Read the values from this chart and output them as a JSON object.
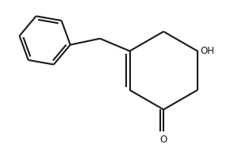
{
  "background_color": "#ffffff",
  "line_color": "#1a1a1a",
  "line_width": 1.5,
  "figsize": [
    3.0,
    1.92
  ],
  "dpi": 100,
  "OH_label": "OH",
  "O_label": "O",
  "font_size": 8.5
}
